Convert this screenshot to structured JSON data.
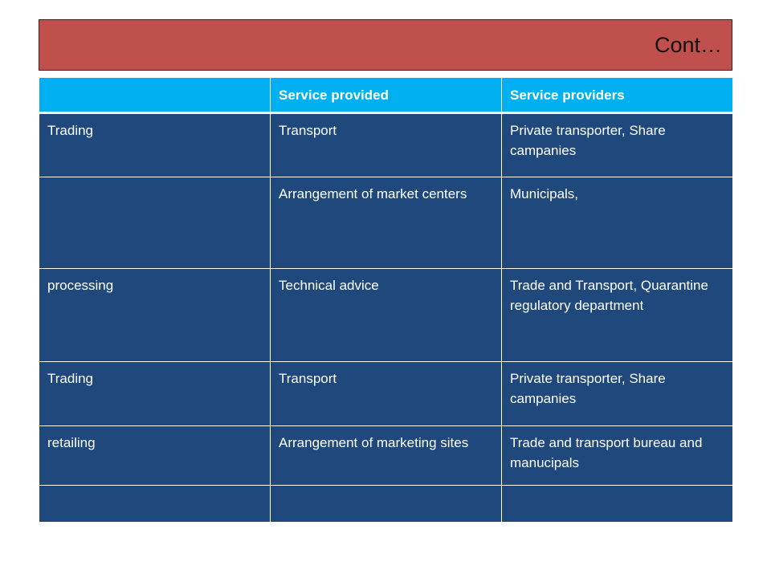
{
  "slide": {
    "title": "Cont…"
  },
  "table": {
    "headers": [
      "",
      "Service provided",
      "Service providers"
    ],
    "rows": [
      [
        "Trading",
        "Transport",
        "Private transporter, Share campanies"
      ],
      [
        "",
        "Arrangement of market centers",
        "Municipals,"
      ],
      [
        "processing",
        "Technical advice",
        "Trade and Transport, Quarantine regulatory department"
      ],
      [
        "Trading",
        "Transport",
        "Private transporter, Share campanies"
      ],
      [
        "retailing",
        "Arrangement of marketing sites",
        "Trade and transport bureau and manucipals"
      ],
      [
        "",
        "",
        ""
      ]
    ]
  },
  "colors": {
    "title_bar": "#c0504d",
    "header_row": "#00b0f0",
    "body_row": "#1f497d",
    "cell_text": "#ffffff"
  }
}
